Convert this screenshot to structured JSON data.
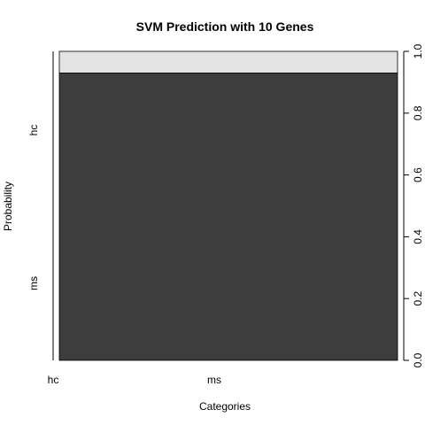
{
  "chart_data": {
    "type": "bar",
    "subtype": "spineplot",
    "title": "SVM Prediction with 10 Genes",
    "xlabel": "Categories",
    "ylabel": "Probability",
    "x_categories": [
      "hc",
      "ms"
    ],
    "x_category_widths": [
      0.0,
      1.0
    ],
    "y_levels": [
      "hc",
      "ms"
    ],
    "conditional_proportions": [
      {
        "x": "ms",
        "levels": [
          {
            "level": "ms",
            "value": 0.93,
            "color": "#3d3d3d"
          },
          {
            "level": "hc",
            "value": 0.07,
            "color": "#e3e3e3"
          }
        ]
      }
    ],
    "right_axis": {
      "ticks": [
        "0.0",
        "0.2",
        "0.4",
        "0.6",
        "0.8",
        "1.0"
      ],
      "ylim": [
        0,
        1
      ]
    },
    "grid": false,
    "legend": "none"
  }
}
